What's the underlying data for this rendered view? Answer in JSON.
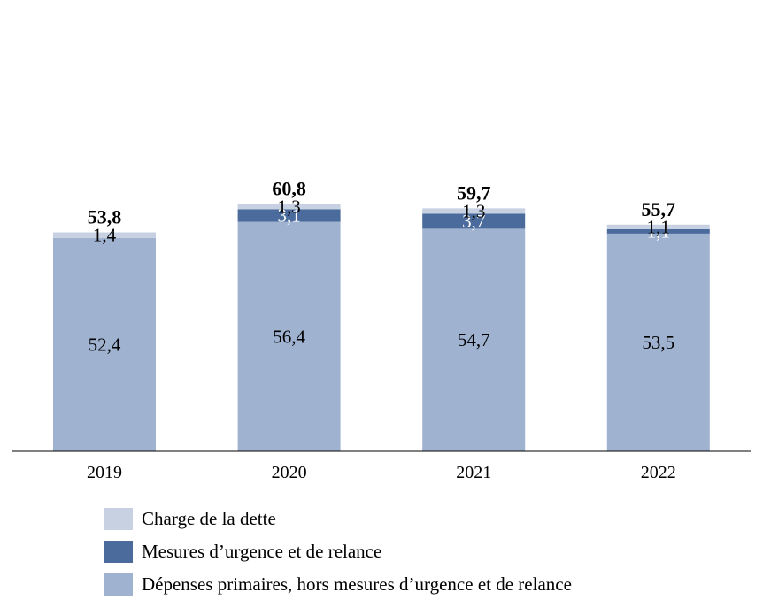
{
  "chart_data": {
    "type": "bar",
    "stacked": true,
    "categories": [
      "2019",
      "2020",
      "2021",
      "2022"
    ],
    "series": [
      {
        "name": "Dépenses primaires, hors mesures d’urgence et de relance",
        "values": [
          52.4,
          56.4,
          54.7,
          53.5
        ],
        "labels": [
          "52,4",
          "56,4",
          "54,7",
          "53,5"
        ],
        "color": "#9fb2d0",
        "label_color": "#000000"
      },
      {
        "name": "Mesures d’urgence et de relance",
        "values": [
          0,
          3.1,
          3.7,
          1.1
        ],
        "labels": [
          "",
          "3,1",
          "3,7",
          "1,1"
        ],
        "color": "#4a6b9c",
        "label_color": "#ffffff"
      },
      {
        "name": "Charge de la dette",
        "values": [
          1.4,
          1.3,
          1.3,
          1.1
        ],
        "labels": [
          "1,4",
          "1,3",
          "1,3",
          "1,1"
        ],
        "color": "#c7d1e2",
        "label_color": "#000000"
      }
    ],
    "totals": [
      "53,8",
      "60,8",
      "59,7",
      "55,7"
    ],
    "title": "",
    "xlabel": "",
    "ylabel": "",
    "grid": false,
    "legend_position": "bottom"
  },
  "legend": [
    {
      "label": "Charge de la dette",
      "color": "#c7d1e2"
    },
    {
      "label": "Mesures d’urgence et de relance",
      "color": "#4a6b9c"
    },
    {
      "label": "Dépenses primaires, hors mesures d’urgence et de relance",
      "color": "#9fb2d0"
    }
  ]
}
